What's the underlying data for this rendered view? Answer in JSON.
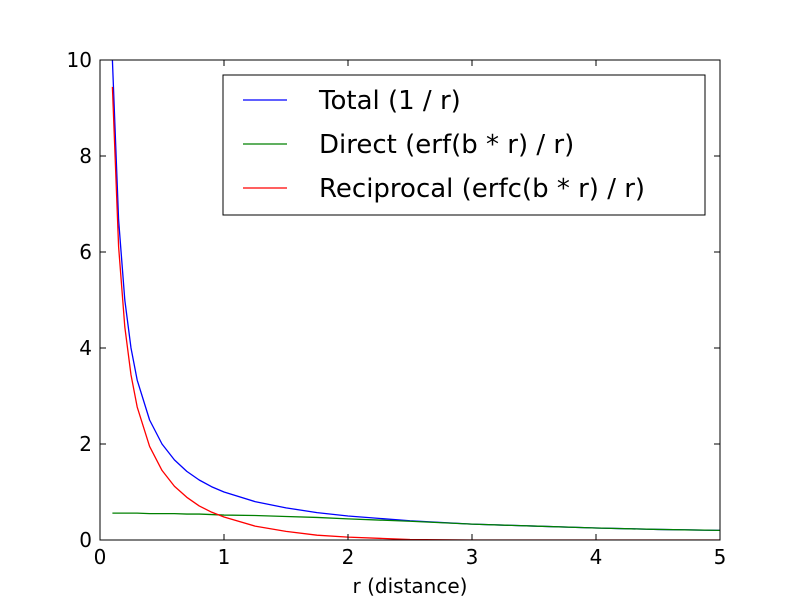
{
  "chart_data": {
    "type": "line",
    "title": "",
    "xlabel": "r (distance)",
    "ylabel": "",
    "xlim": [
      0,
      5
    ],
    "ylim": [
      0,
      10
    ],
    "xticks": [
      0,
      1,
      2,
      3,
      4,
      5
    ],
    "yticks": [
      0,
      2,
      4,
      6,
      8,
      10
    ],
    "grid": false,
    "legend_position": "top-right",
    "x": [
      0.1,
      0.15,
      0.2,
      0.25,
      0.3,
      0.4,
      0.5,
      0.6,
      0.7,
      0.8,
      0.9,
      1.0,
      1.25,
      1.5,
      1.75,
      2.0,
      2.5,
      3.0,
      3.5,
      4.0,
      4.5,
      5.0
    ],
    "series": [
      {
        "name": "Total (1 / r)",
        "color": "#0000ff",
        "values": [
          10.0,
          6.67,
          5.0,
          4.0,
          3.33,
          2.5,
          2.0,
          1.67,
          1.43,
          1.25,
          1.11,
          1.0,
          0.8,
          0.67,
          0.57,
          0.5,
          0.4,
          0.33,
          0.29,
          0.25,
          0.22,
          0.2
        ]
      },
      {
        "name": "Direct (erf(b * r) / r)",
        "color": "#008000",
        "values": [
          0.56,
          0.56,
          0.56,
          0.56,
          0.56,
          0.55,
          0.55,
          0.55,
          0.54,
          0.54,
          0.53,
          0.52,
          0.51,
          0.49,
          0.47,
          0.44,
          0.39,
          0.33,
          0.29,
          0.25,
          0.22,
          0.2
        ]
      },
      {
        "name": "Reciprocal (erfc(b * r) / r)",
        "color": "#ff0000",
        "values": [
          9.44,
          6.11,
          4.44,
          3.44,
          2.77,
          1.95,
          1.45,
          1.12,
          0.89,
          0.71,
          0.58,
          0.48,
          0.29,
          0.18,
          0.1,
          0.06,
          0.01,
          0.0,
          0.0,
          0.0,
          0.0,
          0.0
        ]
      }
    ]
  }
}
